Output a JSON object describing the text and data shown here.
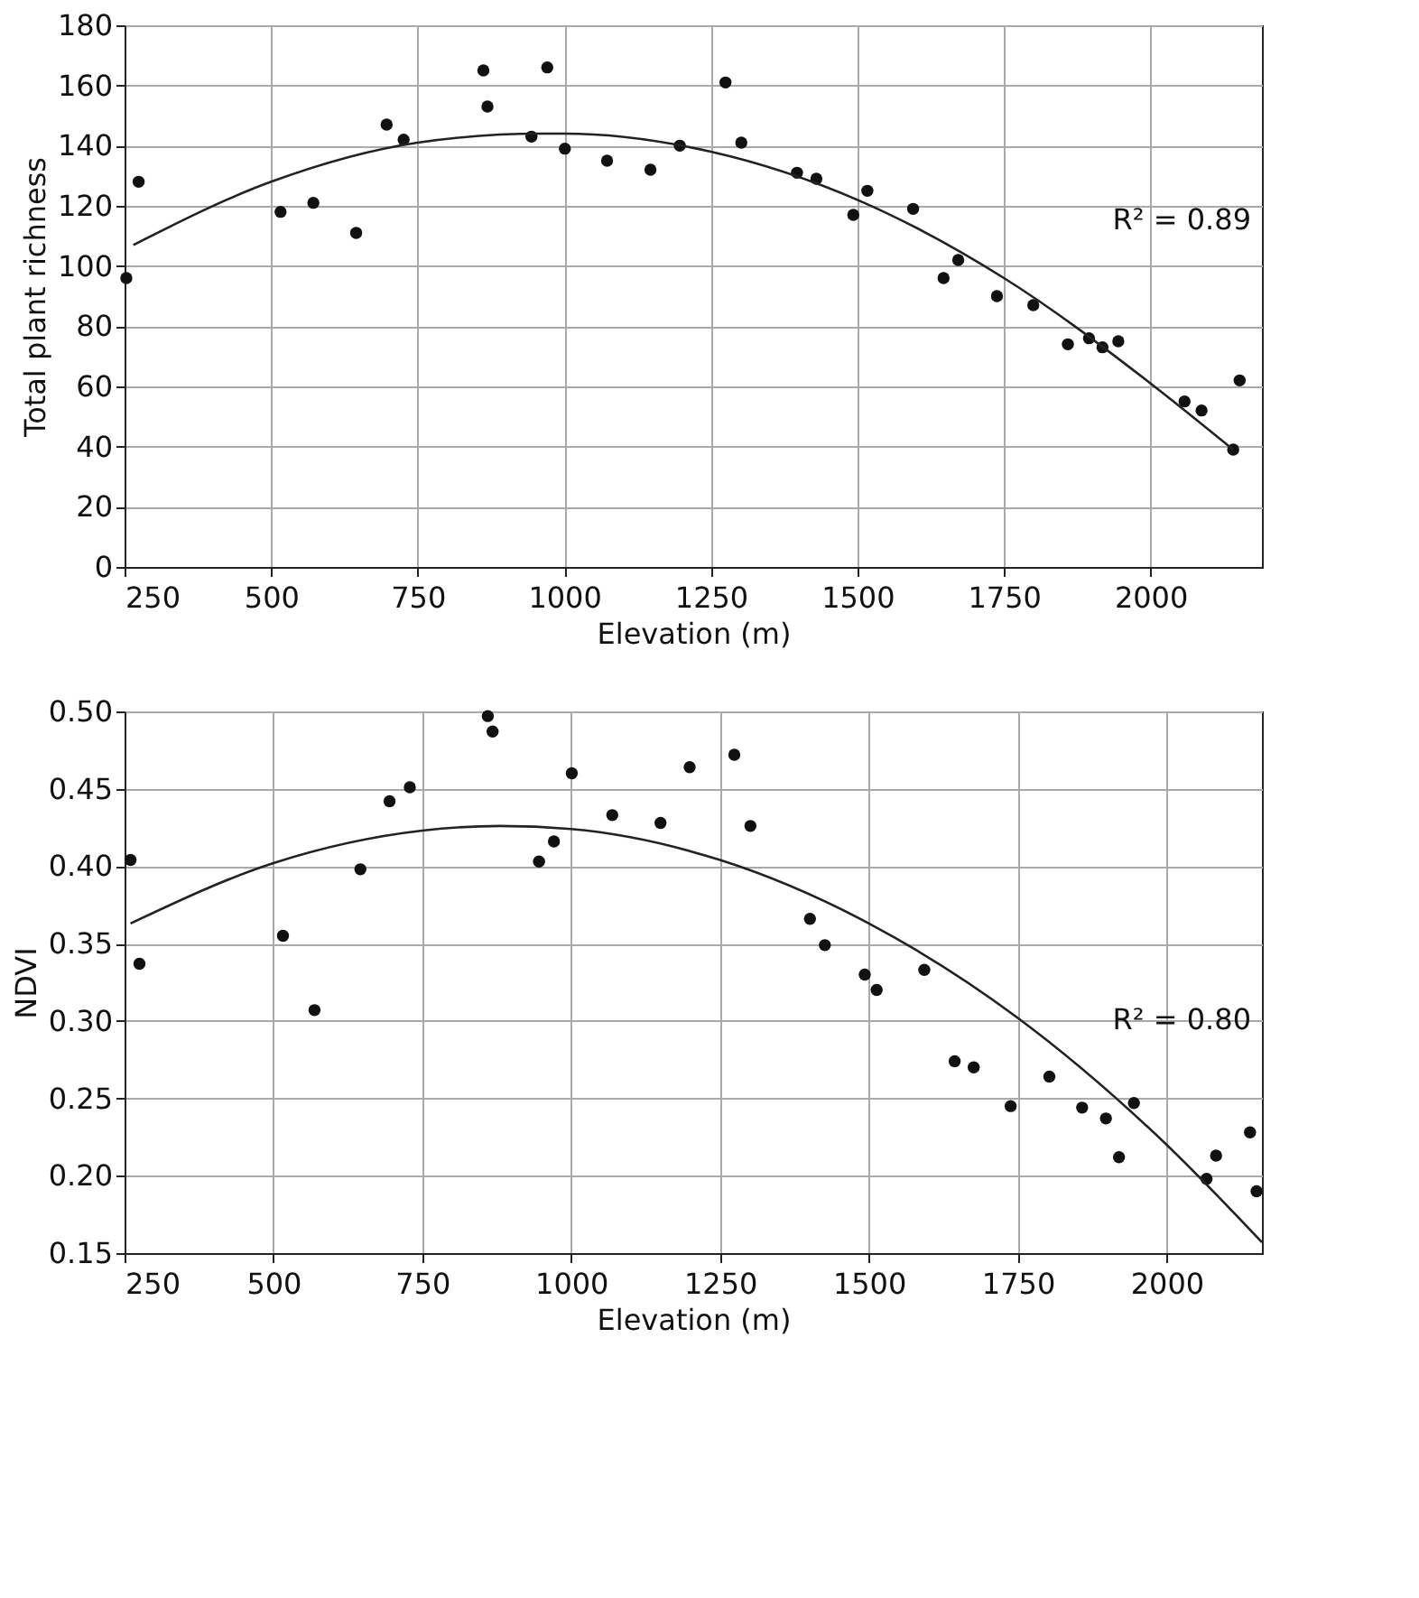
{
  "chart_data": [
    {
      "type": "scatter",
      "xlabel": "Elevation (m)",
      "ylabel": "Total plant richness",
      "xlim": [
        250,
        2190
      ],
      "ylim": [
        0,
        180
      ],
      "xticks": [
        250,
        500,
        750,
        1000,
        1250,
        1500,
        1750,
        2000
      ],
      "yticks": [
        0,
        20,
        40,
        60,
        80,
        100,
        120,
        140,
        160,
        180
      ],
      "grid": true,
      "annotations": [
        "R² = 0.89"
      ],
      "series": [
        {
          "marker": "circle",
          "color": "#111111",
          "x": [
            253,
            274,
            516,
            572,
            645,
            697,
            726,
            862,
            869,
            944,
            971,
            1001,
            1073,
            1147,
            1197,
            1275,
            1302,
            1397,
            1430,
            1493,
            1517,
            1595,
            1647,
            1672,
            1738,
            1800,
            1859,
            1895,
            1918,
            1945,
            2058,
            2087,
            2141,
            2152
          ],
          "values": [
            96,
            128,
            118,
            121,
            111,
            147,
            142,
            165,
            153,
            143,
            166,
            139,
            135,
            132,
            140,
            161,
            141,
            131,
            129,
            117,
            125,
            119,
            96,
            102,
            90,
            87,
            74,
            76,
            73,
            75,
            55,
            52,
            39,
            62
          ]
        },
        {
          "type": "line",
          "line_style": "solid",
          "color": "#222222",
          "x": [
            265,
            500,
            750,
            960,
            1000,
            1250,
            1500,
            1750,
            2000,
            2141
          ],
          "values": [
            107,
            128,
            141,
            144,
            144,
            138,
            122,
            96,
            61,
            39
          ]
        }
      ]
    },
    {
      "type": "scatter",
      "xlabel": "Elevation (m)",
      "ylabel": "NDVI",
      "xlim": [
        250,
        2160
      ],
      "ylim": [
        0.15,
        0.5
      ],
      "xticks": [
        250,
        500,
        750,
        1000,
        1250,
        1500,
        1750,
        2000
      ],
      "yticks": [
        {
          "value": 0.15,
          "label": "0.15"
        },
        {
          "value": 0.2,
          "label": "0.20"
        },
        {
          "value": 0.25,
          "label": "0.25"
        },
        {
          "value": 0.3,
          "label": "0.30"
        },
        {
          "value": 0.35,
          "label": "0.35"
        },
        {
          "value": 0.4,
          "label": "0.40"
        },
        {
          "value": 0.45,
          "label": "0.45"
        },
        {
          "value": 0.5,
          "label": "0.50"
        }
      ],
      "grid": true,
      "annotations": [
        "R² = 0.80"
      ],
      "series": [
        {
          "marker": "circle",
          "color": "#111111",
          "x": [
            260,
            275,
            516,
            569,
            646,
            695,
            729,
            860,
            868,
            946,
            971,
            1001,
            1069,
            1150,
            1199,
            1274,
            1301,
            1401,
            1426,
            1493,
            1513,
            1593,
            1644,
            1676,
            1738,
            1803,
            1858,
            1898,
            1920,
            1945,
            2067,
            2083,
            2140,
            2151
          ],
          "values": [
            0.404,
            0.337,
            0.355,
            0.307,
            0.398,
            0.442,
            0.451,
            0.497,
            0.487,
            0.403,
            0.416,
            0.46,
            0.433,
            0.428,
            0.464,
            0.472,
            0.426,
            0.366,
            0.349,
            0.33,
            0.32,
            0.333,
            0.274,
            0.27,
            0.245,
            0.264,
            0.244,
            0.237,
            0.212,
            0.247,
            0.198,
            0.213,
            0.228,
            0.19
          ]
        },
        {
          "type": "line",
          "line_style": "solid",
          "color": "#222222",
          "x": [
            260,
            500,
            750,
            880,
            1000,
            1250,
            1500,
            1750,
            2000,
            2160
          ],
          "values": [
            0.363,
            0.402,
            0.423,
            0.426,
            0.424,
            0.404,
            0.363,
            0.302,
            0.22,
            0.157
          ]
        }
      ]
    }
  ]
}
